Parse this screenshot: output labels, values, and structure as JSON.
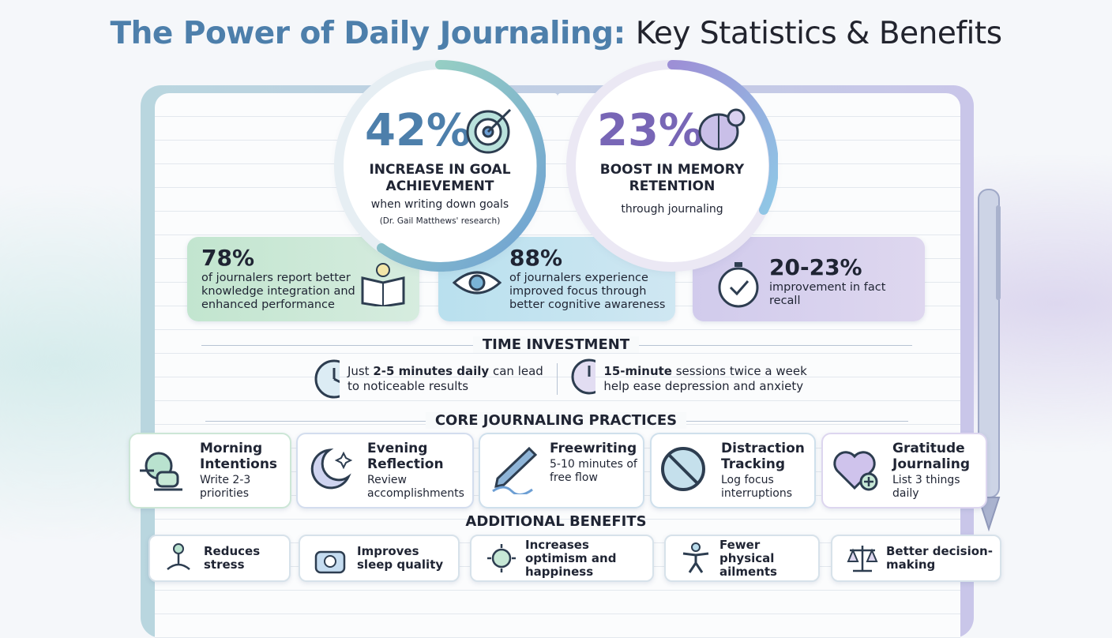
{
  "title": {
    "lead": "The Power of Daily Journaling:",
    "rest": "Key Statistics & Benefits"
  },
  "circles": [
    {
      "stat": "42%",
      "headline": "INCREASE IN GOAL ACHIEVEMENT",
      "sub": "when writing down goals",
      "note": "(Dr. Gail Matthews' research)"
    },
    {
      "stat": "23%",
      "headline": "BOOST IN MEMORY RETENTION",
      "sub": "through journaling"
    }
  ],
  "cards": [
    {
      "stat": "78%",
      "text": "of journalers report better knowledge integration and enhanced performance"
    },
    {
      "stat": "88%",
      "text": "of journalers experience improved focus through better cognitive awareness"
    },
    {
      "stat": "20-23%",
      "text": "improvement in fact recall"
    }
  ],
  "time_investment": {
    "heading": "TIME INVESTMENT",
    "items": [
      {
        "before": "Just ",
        "bold": "2-5 minutes daily",
        "after": " can lead to noticeable results"
      },
      {
        "before": "",
        "bold": "15-minute",
        "after": " sessions twice a week help ease depression and anxiety"
      }
    ]
  },
  "practices": {
    "heading": "CORE JOURNALING PRACTICES",
    "items": [
      {
        "title": "Morning Intentions",
        "text": "Write 2-3 priorities"
      },
      {
        "title": "Evening Reflection",
        "text": "Review accomplishments"
      },
      {
        "title": "Freewriting",
        "text": "5-10 minutes of free flow"
      },
      {
        "title": "Distraction Tracking",
        "text": "Log focus interruptions"
      },
      {
        "title": "Gratitude Journaling",
        "text": "List 3 things daily"
      }
    ]
  },
  "benefits": {
    "heading": "ADDITIONAL BENEFITS",
    "items": [
      "Reduces stress",
      "Improves sleep quality",
      "Increases optimism and happiness",
      "Fewer physical ailments",
      "Better decision-making"
    ]
  }
}
